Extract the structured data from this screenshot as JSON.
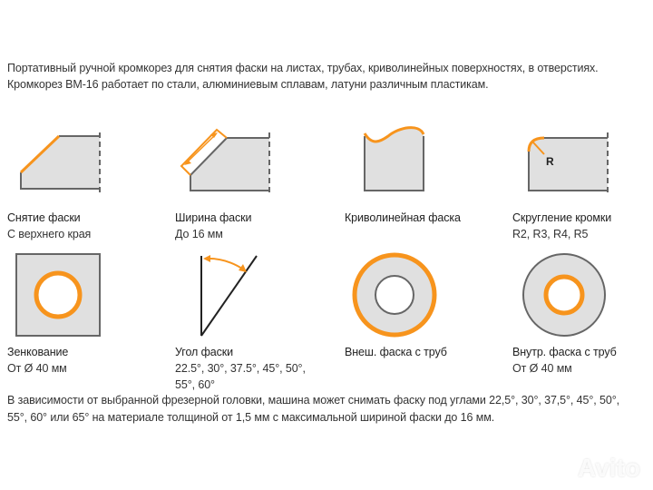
{
  "intro": [
    "Портативный ручной кромкорез для снятия фаски на листах, трубах, криволинейных поверхностях, в отверстиях.",
    "Кромкорез ВМ-16 работает по стали, алюминиевым сплавам, латуни различным пластикам."
  ],
  "items": [
    {
      "title": "Снятие фаски",
      "sub": "С верхнего края"
    },
    {
      "title": "Ширина фаски",
      "sub": "До 16 мм"
    },
    {
      "title": "Криволинейная фаска",
      "sub": ""
    },
    {
      "title": "Скругление кромки",
      "sub": "R2, R3, R4, R5"
    },
    {
      "title": "Зенкование",
      "sub": "От Ø 40 мм"
    },
    {
      "title": "Угол фаски",
      "sub": "22.5°, 30°, 37.5°, 45°, 50°,",
      "sub2": "55°, 60°"
    },
    {
      "title": "Внеш. фаска с труб",
      "sub": ""
    },
    {
      "title": "Внутр. фаска с труб",
      "sub": "От Ø 40 мм"
    }
  ],
  "radius_label": "R",
  "footer": [
    "В зависимости от выбранной фрезерной головки, машина может снимать фаску под углами 22,5°, 30°, 37,5°, 45°, 50°,",
    "55°, 60° или 65° на материале толщиной от 1,5 мм с максимальной шириной фаски до 16 мм."
  ],
  "watermark": "Avito",
  "colors": {
    "accent": "#f7941d",
    "fill": "#e0e0e0",
    "stroke": "#666666"
  }
}
